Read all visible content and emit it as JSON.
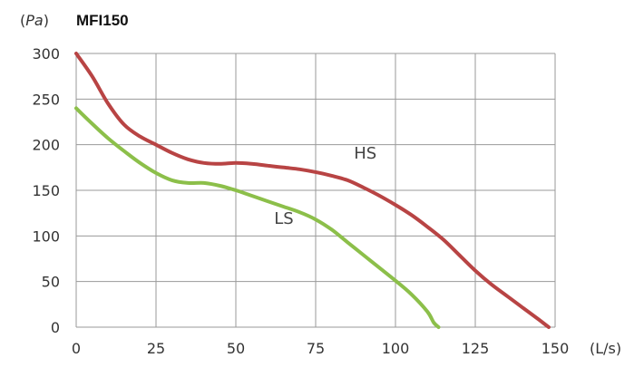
{
  "chart_data": {
    "type": "line",
    "title": "MFI150",
    "ylabel": "(Pa)",
    "xlabel": "(L/s)",
    "xlim": [
      0,
      150
    ],
    "ylim": [
      0,
      300
    ],
    "x_ticks": [
      0,
      25,
      50,
      75,
      100,
      125,
      150
    ],
    "y_ticks": [
      0,
      50,
      100,
      150,
      200,
      250,
      300
    ],
    "grid": true,
    "series": [
      {
        "name": "HS",
        "color": "#b84444",
        "points": [
          [
            0,
            300
          ],
          [
            5,
            275
          ],
          [
            10,
            245
          ],
          [
            15,
            222
          ],
          [
            20,
            209
          ],
          [
            25,
            200
          ],
          [
            30,
            191
          ],
          [
            35,
            184
          ],
          [
            40,
            180
          ],
          [
            45,
            179
          ],
          [
            50,
            180
          ],
          [
            55,
            179
          ],
          [
            60,
            177
          ],
          [
            65,
            175
          ],
          [
            70,
            173
          ],
          [
            75,
            170
          ],
          [
            80,
            166
          ],
          [
            85,
            161
          ],
          [
            90,
            153
          ],
          [
            95,
            144
          ],
          [
            100,
            134
          ],
          [
            105,
            123
          ],
          [
            110,
            110
          ],
          [
            115,
            96
          ],
          [
            120,
            79
          ],
          [
            125,
            62
          ],
          [
            130,
            47
          ],
          [
            135,
            34
          ],
          [
            140,
            21
          ],
          [
            145,
            8
          ],
          [
            148,
            0
          ]
        ]
      },
      {
        "name": "LS",
        "color": "#8cbf4a",
        "points": [
          [
            0,
            240
          ],
          [
            5,
            223
          ],
          [
            10,
            207
          ],
          [
            15,
            193
          ],
          [
            20,
            180
          ],
          [
            25,
            169
          ],
          [
            30,
            161
          ],
          [
            35,
            158
          ],
          [
            40,
            158
          ],
          [
            45,
            155
          ],
          [
            50,
            150
          ],
          [
            55,
            144
          ],
          [
            60,
            138
          ],
          [
            65,
            132
          ],
          [
            70,
            126
          ],
          [
            75,
            118
          ],
          [
            80,
            107
          ],
          [
            85,
            93
          ],
          [
            90,
            79
          ],
          [
            95,
            65
          ],
          [
            100,
            51
          ],
          [
            105,
            36
          ],
          [
            110,
            17
          ],
          [
            112,
            5
          ],
          [
            113.5,
            0
          ]
        ]
      }
    ],
    "annotations": [
      {
        "text": "HS",
        "x": 87,
        "y": 185
      },
      {
        "text": "LS",
        "x": 62,
        "y": 113
      }
    ]
  }
}
